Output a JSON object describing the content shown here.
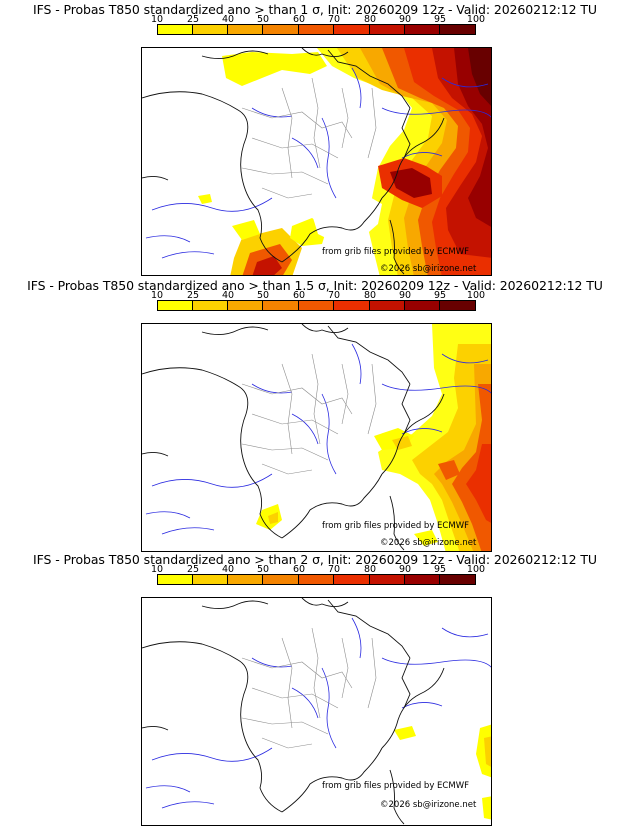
{
  "palette": [
    "#ffff00",
    "#fcd100",
    "#f8a800",
    "#f48300",
    "#f05800",
    "#ea2f00",
    "#c41200",
    "#980000",
    "#680000"
  ],
  "colorbar_ticks": [
    "10",
    "25",
    "40",
    "50",
    "60",
    "70",
    "80",
    "90",
    "95",
    "100"
  ],
  "credits": {
    "source": "from grib files provided by ECMWF",
    "copyright": "©2026 sb@irizone.net"
  },
  "panels": [
    {
      "title": "IFS - Probas T850  standardized ano > than 1 σ, Init: 20260209 12z - Valid: 20260212:12 TU"
    },
    {
      "title": "IFS - Probas T850  standardized ano > than 1.5 σ, Init: 20260209 12z - Valid: 20260212:12 TU"
    },
    {
      "title": "IFS - Probas T850  standardized ano > than 2 σ, Init: 20260209 12z - Valid: 20260212:12 TU"
    }
  ]
}
